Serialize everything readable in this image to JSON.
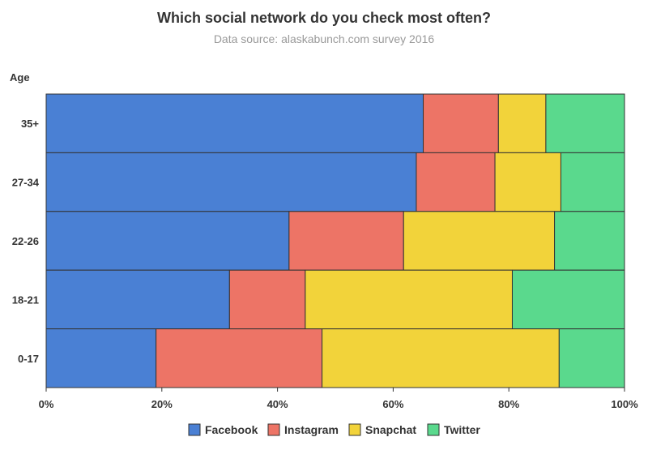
{
  "chart_data": {
    "type": "bar",
    "orientation": "horizontal",
    "stacked": "percent",
    "title": "Which social network do you check most often?",
    "subtitle": "Data source: alaskabunch.com survey 2016",
    "ylabel": "Age",
    "xlabel": "",
    "xlim": [
      0,
      100
    ],
    "x_ticks": [
      "0%",
      "20%",
      "40%",
      "60%",
      "80%",
      "100%"
    ],
    "x_tick_values": [
      0,
      20,
      40,
      60,
      80,
      100
    ],
    "categories": [
      "35+",
      "27-34",
      "22-26",
      "18-21",
      "0-17"
    ],
    "series": [
      {
        "name": "Facebook",
        "color": "#4a80d4",
        "values": [
          65.2,
          64.0,
          42.0,
          31.7,
          19.0
        ]
      },
      {
        "name": "Instagram",
        "color": "#ed7466",
        "values": [
          13.0,
          13.6,
          19.8,
          13.1,
          28.7
        ]
      },
      {
        "name": "Snapchat",
        "color": "#f2d33a",
        "values": [
          8.2,
          11.4,
          26.1,
          35.8,
          41.0
        ]
      },
      {
        "name": "Twitter",
        "color": "#5ad98d",
        "values": [
          13.6,
          11.0,
          12.1,
          19.4,
          11.3
        ]
      }
    ],
    "legend_position": "bottom",
    "grid": false
  }
}
